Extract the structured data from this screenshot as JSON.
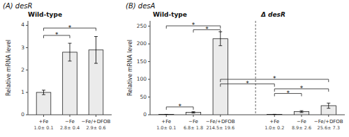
{
  "chart_data": [
    {
      "type": "bar",
      "title": "(A) desR",
      "subtitle": "Wild-type",
      "categories": [
        "+Fe",
        "−Fe",
        "−Fe/+DFOB"
      ],
      "values": [
        1.0,
        2.8,
        2.9
      ],
      "errors": [
        0.1,
        0.4,
        0.6
      ],
      "data_labels": true,
      "value_labels": [
        "1.0± 0.1",
        "2.8± 0.4",
        "2.9± 0.6"
      ],
      "color": "#ebebeb",
      "ylim": [
        0,
        4.2
      ],
      "yticks": [
        0,
        1,
        2,
        3,
        4
      ],
      "ylabel": "Relative mRNA level",
      "annotations": [
        {
          "text": "*",
          "from": 0,
          "to": 1,
          "y": 3.55
        },
        {
          "text": "*",
          "from": 0,
          "to": 2,
          "y": 3.88
        }
      ]
    },
    {
      "type": "bar",
      "title": "(B) desA",
      "groups": [
        {
          "label": "Wild-type",
          "from": 0,
          "to": 2
        },
        {
          "label": "Δ desR",
          "from": 3,
          "to": 5
        }
      ],
      "categories": [
        "+Fe",
        "−Fe",
        "−Fe/+DFOB",
        "+Fe",
        "−Fe",
        "−Fe/+DFOB"
      ],
      "values": [
        1.0,
        6.8,
        214.5,
        1.0,
        8.9,
        25.6
      ],
      "errors": [
        0.1,
        1.8,
        19.6,
        0.2,
        2.6,
        7.3
      ],
      "data_labels": true,
      "value_labels": [
        "1.0± 0.1",
        "6.8± 1.8",
        "214.5± 19.6",
        "1.0± 0.2",
        "8.9± 2.6",
        "25.6± 7.3"
      ],
      "color": "#ebebeb",
      "ylim": [
        0,
        265
      ],
      "yticks": [
        0,
        50,
        100,
        150,
        200,
        250
      ],
      "ylabel": "Relative mRNA level",
      "annotations": [
        {
          "text": "*",
          "from": 0,
          "to": 1,
          "y": 22
        },
        {
          "text": "*",
          "from": 1,
          "to": 2,
          "y": 240
        },
        {
          "text": "*",
          "from": 0,
          "to": 2,
          "y": 251
        },
        {
          "text": "*",
          "from": 3,
          "to": 4,
          "y": 60
        },
        {
          "text": "*",
          "from": 3,
          "to": 5,
          "y": 73
        },
        {
          "text": "*",
          "from": 2,
          "to": 3,
          "y": 87
        },
        {
          "text": "*",
          "from": 2,
          "to": 5,
          "y": 100
        }
      ]
    }
  ]
}
